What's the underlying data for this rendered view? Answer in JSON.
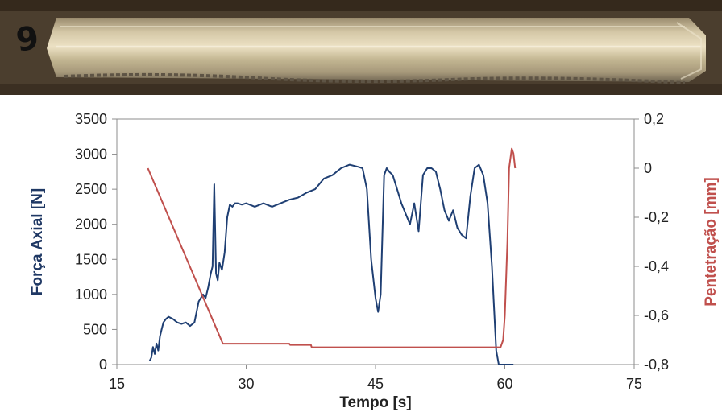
{
  "photo": {
    "specimen_label": "9"
  },
  "chart_data": {
    "type": "line",
    "xlabel": "Tempo [s]",
    "ylabel_left": "Força Axial [N]",
    "ylabel_right": "Pentetração [mm]",
    "xlim": [
      15,
      75
    ],
    "ylim_left": [
      0,
      3500
    ],
    "ylim_right": [
      -0.8,
      0.2
    ],
    "x_ticks": [
      "15",
      "30",
      "45",
      "60",
      "75"
    ],
    "y_left_ticks": [
      "0",
      "500",
      "1000",
      "1500",
      "2000",
      "2500",
      "3000",
      "3500"
    ],
    "y_right_ticks": [
      "-0,8",
      "-0,6",
      "-0,4",
      "-0,2",
      "0",
      "0,2"
    ],
    "grid": false,
    "colors": {
      "force": "#1f3f73",
      "penetration": "#c0504d",
      "left_title": "#1f3864",
      "right_title": "#c0504d"
    },
    "series": [
      {
        "axis": "left",
        "x": [
          18.8,
          19.0,
          19.2,
          19.4,
          19.6,
          19.8,
          20.0,
          20.2,
          20.4,
          20.7,
          21.0,
          21.5,
          22.0,
          22.5,
          23.0,
          23.5,
          24.0,
          24.5,
          25.0,
          25.3,
          25.6,
          25.9,
          26.1,
          26.3,
          26.5,
          26.7,
          26.9,
          27.2,
          27.5,
          27.8,
          28.1,
          28.4,
          28.7,
          29.0,
          29.5,
          30.0,
          31.0,
          32.0,
          33.0,
          34.0,
          35.0,
          36.0,
          37.0,
          38.0,
          39.0,
          40.0,
          41.0,
          42.0,
          43.0,
          43.5,
          44.0,
          44.5,
          45.0,
          45.3,
          45.6,
          46.0,
          46.3,
          46.6,
          47.0,
          47.5,
          48.0,
          48.5,
          49.0,
          49.5,
          50.0,
          50.5,
          51.0,
          51.5,
          52.0,
          52.5,
          53.0,
          53.5,
          54.0,
          54.5,
          55.0,
          55.5,
          56.0,
          56.5,
          57.0,
          57.5,
          58.0,
          58.5,
          59.0,
          59.3,
          59.5,
          59.7,
          59.9,
          60.2,
          61.0
        ],
        "y": [
          50,
          100,
          250,
          150,
          300,
          200,
          400,
          500,
          600,
          650,
          680,
          650,
          600,
          580,
          600,
          550,
          600,
          900,
          1000,
          950,
          1100,
          1300,
          1400,
          2570,
          1300,
          1200,
          1450,
          1350,
          1600,
          2100,
          2280,
          2250,
          2300,
          2300,
          2280,
          2300,
          2250,
          2300,
          2250,
          2300,
          2350,
          2380,
          2450,
          2500,
          2650,
          2700,
          2800,
          2850,
          2820,
          2800,
          2500,
          1500,
          950,
          750,
          1000,
          2700,
          2800,
          2750,
          2700,
          2500,
          2300,
          2150,
          2000,
          2300,
          1900,
          2700,
          2800,
          2800,
          2750,
          2500,
          2200,
          2050,
          2200,
          1950,
          1850,
          1800,
          2400,
          2800,
          2850,
          2700,
          2300,
          1400,
          200,
          0,
          0,
          0,
          0,
          0,
          0
        ]
      },
      {
        "axis": "right",
        "x": [
          18.6,
          27.3,
          35.0,
          35.1,
          37.5,
          37.6,
          59.5,
          59.8,
          60.0,
          60.3,
          60.5,
          60.8,
          61.0,
          61.2
        ],
        "y": [
          0.0,
          -0.715,
          -0.715,
          -0.72,
          -0.72,
          -0.73,
          -0.73,
          -0.7,
          -0.6,
          -0.3,
          0.0,
          0.08,
          0.06,
          0.0
        ]
      }
    ]
  }
}
